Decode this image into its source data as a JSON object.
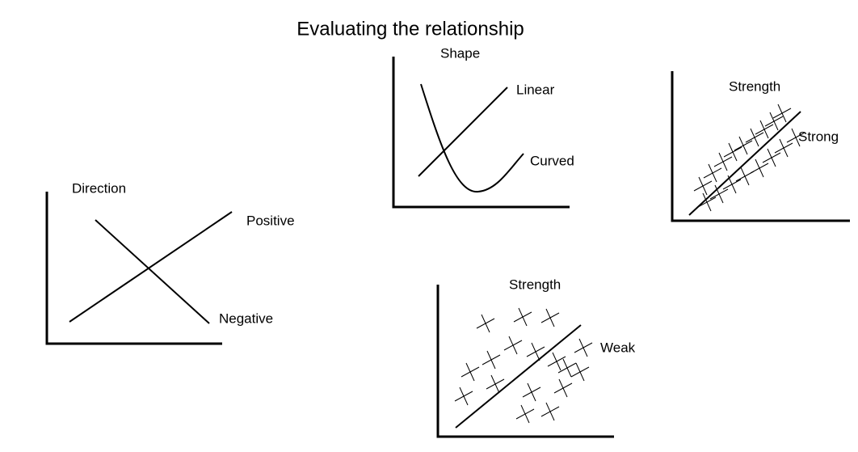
{
  "title": "Evaluating the relationship",
  "panels": [
    {
      "title": "Direction",
      "labels": [
        "Positive",
        "Negative"
      ]
    },
    {
      "title": "Shape",
      "labels": [
        "Linear",
        "Curved"
      ]
    },
    {
      "title": "Strength",
      "labels": [
        "Strong"
      ]
    },
    {
      "title": "Strength",
      "labels": [
        "Weak"
      ]
    }
  ]
}
